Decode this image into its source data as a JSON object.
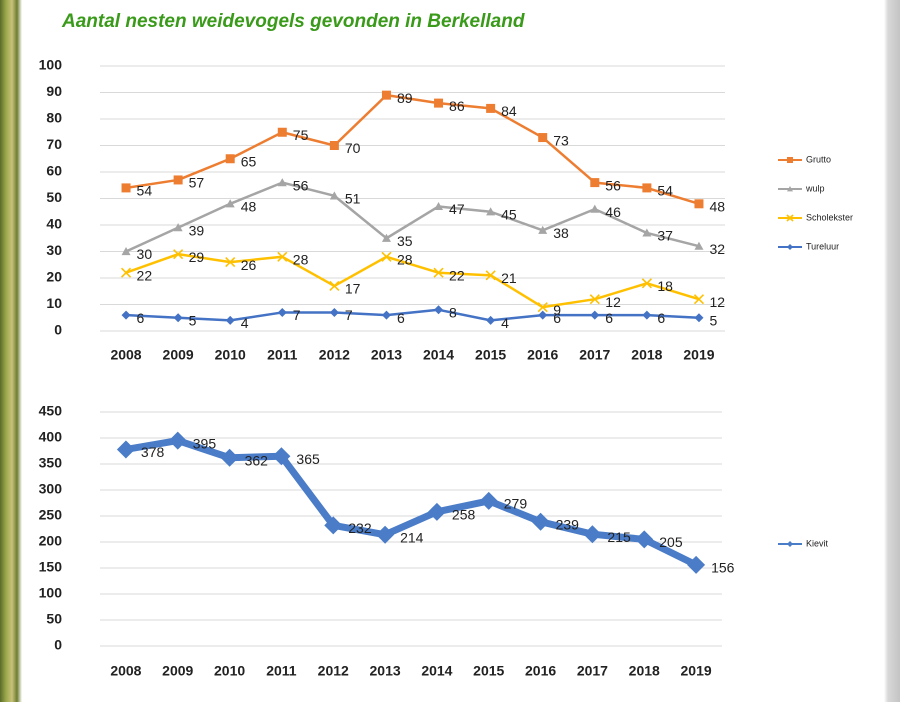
{
  "chart_data": [
    {
      "type": "line",
      "title": "Aantal nesten weidevogels gevonden in Berkelland",
      "categories": [
        "2008",
        "2009",
        "2010",
        "2011",
        "2012",
        "2013",
        "2014",
        "2015",
        "2016",
        "2017",
        "2018",
        "2019"
      ],
      "series": [
        {
          "name": "Grutto",
          "color": "#ed7d31",
          "marker": "square",
          "values": [
            54,
            57,
            65,
            75,
            70,
            89,
            86,
            84,
            73,
            56,
            54,
            48
          ]
        },
        {
          "name": "wulp",
          "color": "#a5a5a5",
          "marker": "triangle",
          "values": [
            30,
            39,
            48,
            56,
            51,
            35,
            47,
            45,
            38,
            46,
            37,
            32
          ]
        },
        {
          "name": "Scholekster",
          "color": "#ffc000",
          "marker": "x",
          "values": [
            22,
            29,
            26,
            28,
            17,
            28,
            22,
            21,
            9,
            12,
            18,
            12
          ]
        },
        {
          "name": "Tureluur",
          "color": "#4472c4",
          "marker": "diamond",
          "values": [
            6,
            5,
            4,
            7,
            7,
            6,
            8,
            4,
            6,
            6,
            6,
            5
          ]
        }
      ],
      "ylim": [
        0,
        100
      ],
      "yticks": [
        0,
        10,
        20,
        30,
        40,
        50,
        60,
        70,
        80,
        90,
        100
      ],
      "grid": true,
      "legend": "right"
    },
    {
      "type": "line",
      "categories": [
        "2008",
        "2009",
        "2010",
        "2011",
        "2012",
        "2013",
        "2014",
        "2015",
        "2016",
        "2017",
        "2018",
        "2019"
      ],
      "series": [
        {
          "name": "Kievit",
          "color": "#4a7cc7",
          "marker": "diamond",
          "values": [
            378,
            395,
            362,
            365,
            232,
            214,
            258,
            279,
            239,
            215,
            205,
            156
          ]
        }
      ],
      "ylim": [
        0,
        450
      ],
      "yticks": [
        0,
        50,
        100,
        150,
        200,
        250,
        300,
        350,
        400,
        450
      ],
      "grid": true,
      "legend": "right"
    }
  ]
}
